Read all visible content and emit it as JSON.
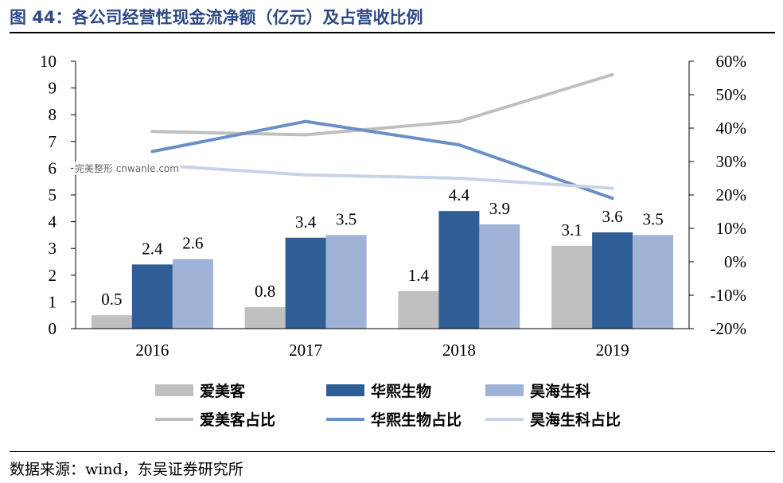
{
  "header": {
    "title": "图 44：各公司经营性现金流净额（亿元）及占营收比例"
  },
  "footer": {
    "source": "数据来源：wind，东吴证券研究所"
  },
  "watermark": "完美整形 cnwanle.com",
  "colors": {
    "aimeike_bar": "#bfbfbf",
    "huaxi_bar": "#2f5e96",
    "haohai_bar": "#9fb3d6",
    "aimeike_line": "#bfbfbf",
    "huaxi_line": "#6a8fc6",
    "haohai_line": "#c8d3e8"
  },
  "chart_data": {
    "type": "bar",
    "categories": [
      "2016",
      "2017",
      "2018",
      "2019"
    ],
    "series": [
      {
        "name": "爱美客",
        "axis": "left",
        "kind": "bar",
        "color": "#bfbfbf",
        "values": [
          0.5,
          0.8,
          1.4,
          3.1
        ],
        "labels": [
          "0.5",
          "0.8",
          "1.4",
          "3.1"
        ]
      },
      {
        "name": "华熙生物",
        "axis": "left",
        "kind": "bar",
        "color": "#2f5e96",
        "values": [
          2.4,
          3.4,
          4.4,
          3.6
        ],
        "labels": [
          "2.4",
          "3.4",
          "4.4",
          "3.6"
        ]
      },
      {
        "name": "昊海生科",
        "axis": "left",
        "kind": "bar",
        "color": "#9fb3d6",
        "values": [
          2.6,
          3.5,
          3.9,
          3.5
        ],
        "labels": [
          "2.6",
          "3.5",
          "3.9",
          "3.5"
        ]
      },
      {
        "name": "爱美客占比",
        "axis": "right",
        "kind": "line",
        "color": "#bfbfbf",
        "values": [
          39,
          38,
          42,
          56
        ]
      },
      {
        "name": "华熙生物占比",
        "axis": "right",
        "kind": "line",
        "color": "#6a8fc6",
        "values": [
          33,
          42,
          35,
          19
        ]
      },
      {
        "name": "昊海生科占比",
        "axis": "right",
        "kind": "line",
        "color": "#c8d3e8",
        "values": [
          29,
          26,
          25,
          22
        ]
      }
    ],
    "y_left": {
      "min": 0,
      "max": 10,
      "ticks": [
        "0",
        "1",
        "2",
        "3",
        "4",
        "5",
        "6",
        "7",
        "8",
        "9",
        "10"
      ]
    },
    "y_right": {
      "min": -20,
      "max": 60,
      "ticks": [
        "-20%",
        "-10%",
        "0%",
        "10%",
        "20%",
        "30%",
        "40%",
        "50%",
        "60%"
      ]
    },
    "legend": {
      "position": "bottom",
      "bars": [
        "爱美客",
        "华熙生物",
        "昊海生科"
      ],
      "lines": [
        "爱美客占比",
        "华熙生物占比",
        "昊海生科占比"
      ]
    },
    "grid": false
  }
}
